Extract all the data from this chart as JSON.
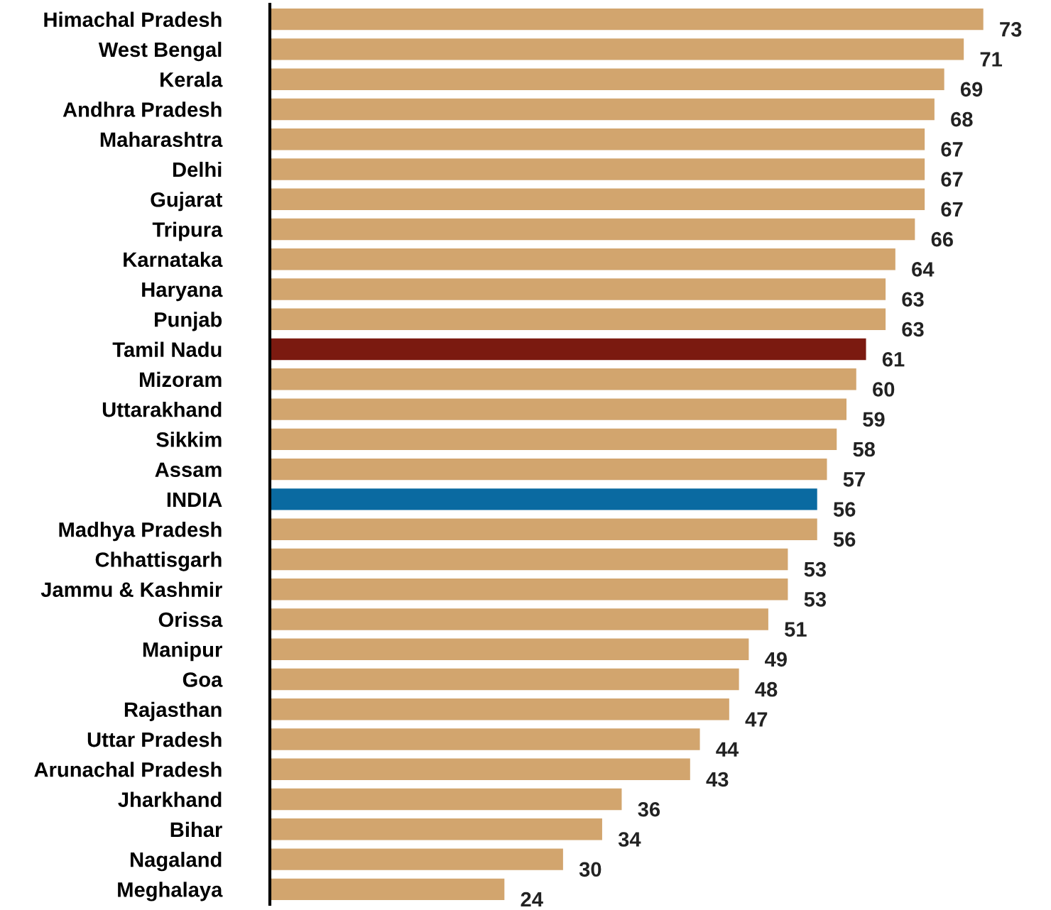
{
  "chart_data": {
    "type": "bar",
    "orientation": "horizontal",
    "data_labels": true,
    "grid": false,
    "legend": false,
    "tick_labels": "y",
    "categories": [
      "Himachal Pradesh",
      "West Bengal",
      "Kerala",
      "Andhra Pradesh",
      "Maharashtra",
      "Delhi",
      "Gujarat",
      "Tripura",
      "Karnataka",
      "Haryana",
      "Punjab",
      "Tamil Nadu",
      "Mizoram",
      "Uttarakhand",
      "Sikkim",
      "Assam",
      "INDIA",
      "Madhya Pradesh",
      "Chhattisgarh",
      "Jammu & Kashmir",
      "Orissa",
      "Manipur",
      "Goa",
      "Rajasthan",
      "Uttar Pradesh",
      "Arunachal Pradesh",
      "Jharkhand",
      "Bihar",
      "Nagaland",
      "Meghalaya"
    ],
    "values": [
      73,
      71,
      69,
      68,
      67,
      67,
      67,
      66,
      64,
      63,
      63,
      61,
      60,
      59,
      58,
      57,
      56,
      56,
      53,
      53,
      51,
      49,
      48,
      47,
      44,
      43,
      36,
      34,
      30,
      24
    ],
    "colors": [
      "#d2a56e",
      "#d2a56e",
      "#d2a56e",
      "#d2a56e",
      "#d2a56e",
      "#d2a56e",
      "#d2a56e",
      "#d2a56e",
      "#d2a56e",
      "#d2a56e",
      "#d2a56e",
      "#7b1a10",
      "#d2a56e",
      "#d2a56e",
      "#d2a56e",
      "#d2a56e",
      "#0a6aa1",
      "#d2a56e",
      "#d2a56e",
      "#d2a56e",
      "#d2a56e",
      "#d2a56e",
      "#d2a56e",
      "#d2a56e",
      "#d2a56e",
      "#d2a56e",
      "#d2a56e",
      "#d2a56e",
      "#d2a56e",
      "#d2a56e"
    ]
  }
}
